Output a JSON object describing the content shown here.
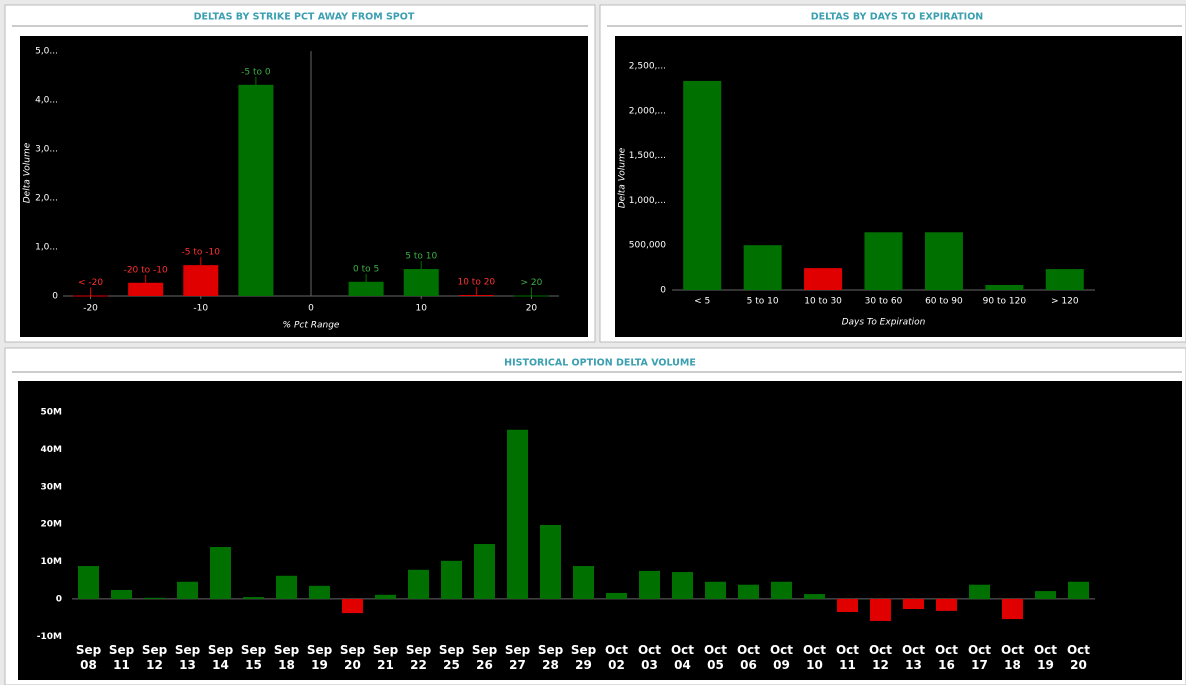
{
  "chart_data": [
    {
      "type": "bar",
      "title": "DELTAS BY STRIKE PCT AWAY FROM SPOT",
      "xlabel": "% Pct Range",
      "ylabel": "Delta Volume",
      "x": [
        -20,
        -15,
        -10,
        -5,
        5,
        10,
        15,
        20
      ],
      "value_labels": [
        "< -20",
        "-20 to -10",
        "-5 to -10",
        "-5 to 0",
        "0 to 5",
        "5 to 10",
        "10 to 20",
        "> 20"
      ],
      "values": [
        10000,
        270000,
        630000,
        4310000,
        290000,
        550000,
        20000,
        10000
      ],
      "colors": [
        "#e00000",
        "#e00000",
        "#e00000",
        "#007000",
        "#007000",
        "#007000",
        "#e00000",
        "#007000"
      ],
      "xlim": [
        -22.5,
        22.5
      ],
      "xticks": [
        -20,
        -10,
        0,
        10,
        20
      ],
      "ylim": [
        0,
        5000000
      ],
      "yticks": [
        0,
        {
          "value": 1000000,
          "label": "1,0..."
        },
        {
          "value": 2000000,
          "label": "2,0..."
        },
        {
          "value": 3000000,
          "label": "3,0..."
        },
        {
          "value": 4000000,
          "label": "4,0..."
        },
        {
          "value": 5000000,
          "label": "5,0..."
        }
      ]
    },
    {
      "type": "bar",
      "title": "DELTAS BY DAYS TO EXPIRATION",
      "xlabel": "Days To Expiration",
      "ylabel": "Delta Volume",
      "categories": [
        "< 5",
        "5 to 10",
        "10 to 30",
        "30 to 60",
        "60 to 90",
        "90 to 120",
        "> 120"
      ],
      "values": [
        2333000,
        500000,
        244000,
        644000,
        644000,
        56000,
        233000
      ],
      "colors": [
        "#007000",
        "#007000",
        "#e00000",
        "#007000",
        "#007000",
        "#007000",
        "#007000"
      ],
      "ylim": [
        0,
        2600000
      ],
      "yticks": [
        0,
        {
          "value": 500000,
          "label": "500,000"
        },
        {
          "value": 1000000,
          "label": "1,000,..."
        },
        {
          "value": 1500000,
          "label": "1,500,..."
        },
        {
          "value": 2000000,
          "label": "2,000,..."
        },
        {
          "value": 2500000,
          "label": "2,500,..."
        }
      ]
    },
    {
      "type": "bar",
      "title": "HISTORICAL OPTION DELTA VOLUME",
      "categories": [
        "Sep 08",
        "Sep 11",
        "Sep 12",
        "Sep 13",
        "Sep 14",
        "Sep 15",
        "Sep 18",
        "Sep 19",
        "Sep 20",
        "Sep 21",
        "Sep 22",
        "Sep 25",
        "Sep 26",
        "Sep 27",
        "Sep 28",
        "Sep 29",
        "Oct 02",
        "Oct 03",
        "Oct 04",
        "Oct 05",
        "Oct 06",
        "Oct 09",
        "Oct 10",
        "Oct 11",
        "Oct 12",
        "Oct 13",
        "Oct 16",
        "Oct 17",
        "Oct 18",
        "Oct 19",
        "Oct 20"
      ],
      "values": [
        8800000,
        2400000,
        300000,
        4600000,
        13900000,
        500000,
        6200000,
        3500000,
        -3800000,
        1100000,
        7800000,
        10200000,
        14700000,
        45300000,
        19800000,
        8800000,
        1600000,
        7500000,
        7200000,
        4600000,
        3800000,
        4600000,
        1300000,
        -3500000,
        -5900000,
        -2700000,
        -3200000,
        3800000,
        -5400000,
        2100000,
        4600000
      ],
      "color": "#007000",
      "negative_color": "#e00000",
      "ylim": [
        -11000000,
        53000000
      ],
      "yticks": [
        {
          "value": -10000000,
          "label": "-10M"
        },
        0,
        {
          "value": 10000000,
          "label": "10M"
        },
        {
          "value": 20000000,
          "label": "20M"
        },
        {
          "value": 30000000,
          "label": "30M"
        },
        {
          "value": 40000000,
          "label": "40M"
        },
        {
          "value": 50000000,
          "label": "50M"
        }
      ]
    }
  ]
}
